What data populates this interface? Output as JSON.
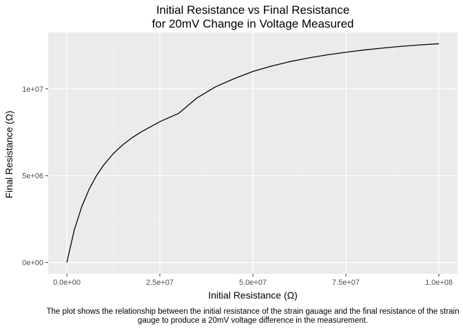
{
  "chart_data": {
    "type": "line",
    "title": "Initial Resistance vs Final Resistance\nfor 20mV Change in Voltage Measured",
    "xlabel": "Initial Resistance (Ω)",
    "ylabel": "Final Resistance (Ω)",
    "caption": "The plot shows the relationship between the initial resistance of the strain gauage and the final resistance of the strain gauge to produce a 20mV voltage difference in the measurement.",
    "xlim": [
      -5000000,
      105000000
    ],
    "ylim": [
      -650000,
      13250000
    ],
    "x_ticks": [
      {
        "value": 0,
        "label": "0.0e+00"
      },
      {
        "value": 25000000,
        "label": "2.5e+07"
      },
      {
        "value": 50000000,
        "label": "5.0e+07"
      },
      {
        "value": 75000000,
        "label": "7.5e+07"
      },
      {
        "value": 100000000,
        "label": "1.0e+08"
      }
    ],
    "y_ticks": [
      {
        "value": 0,
        "label": "0e+00"
      },
      {
        "value": 5000000,
        "label": "5e+06"
      },
      {
        "value": 10000000,
        "label": "1e+07"
      }
    ],
    "grid": true,
    "series": [
      {
        "color": "#000000",
        "x": [
          0,
          2000000,
          4000000,
          6000000,
          8000000,
          10000000,
          12500000,
          15000000,
          17500000,
          20000000,
          25000000,
          30000000,
          35000000,
          40000000,
          45000000,
          50000000,
          55000000,
          60000000,
          65000000,
          70000000,
          75000000,
          80000000,
          85000000,
          90000000,
          95000000,
          100000000
        ],
        "y": [
          0,
          1870000,
          3210000,
          4220000,
          5010000,
          5640000,
          6270000,
          6770000,
          7180000,
          7520000,
          8110000,
          8580000,
          9480000,
          10120000,
          10590000,
          11000000,
          11310000,
          11570000,
          11780000,
          11960000,
          12110000,
          12240000,
          12350000,
          12450000,
          12530000,
          12600000
        ]
      }
    ]
  }
}
